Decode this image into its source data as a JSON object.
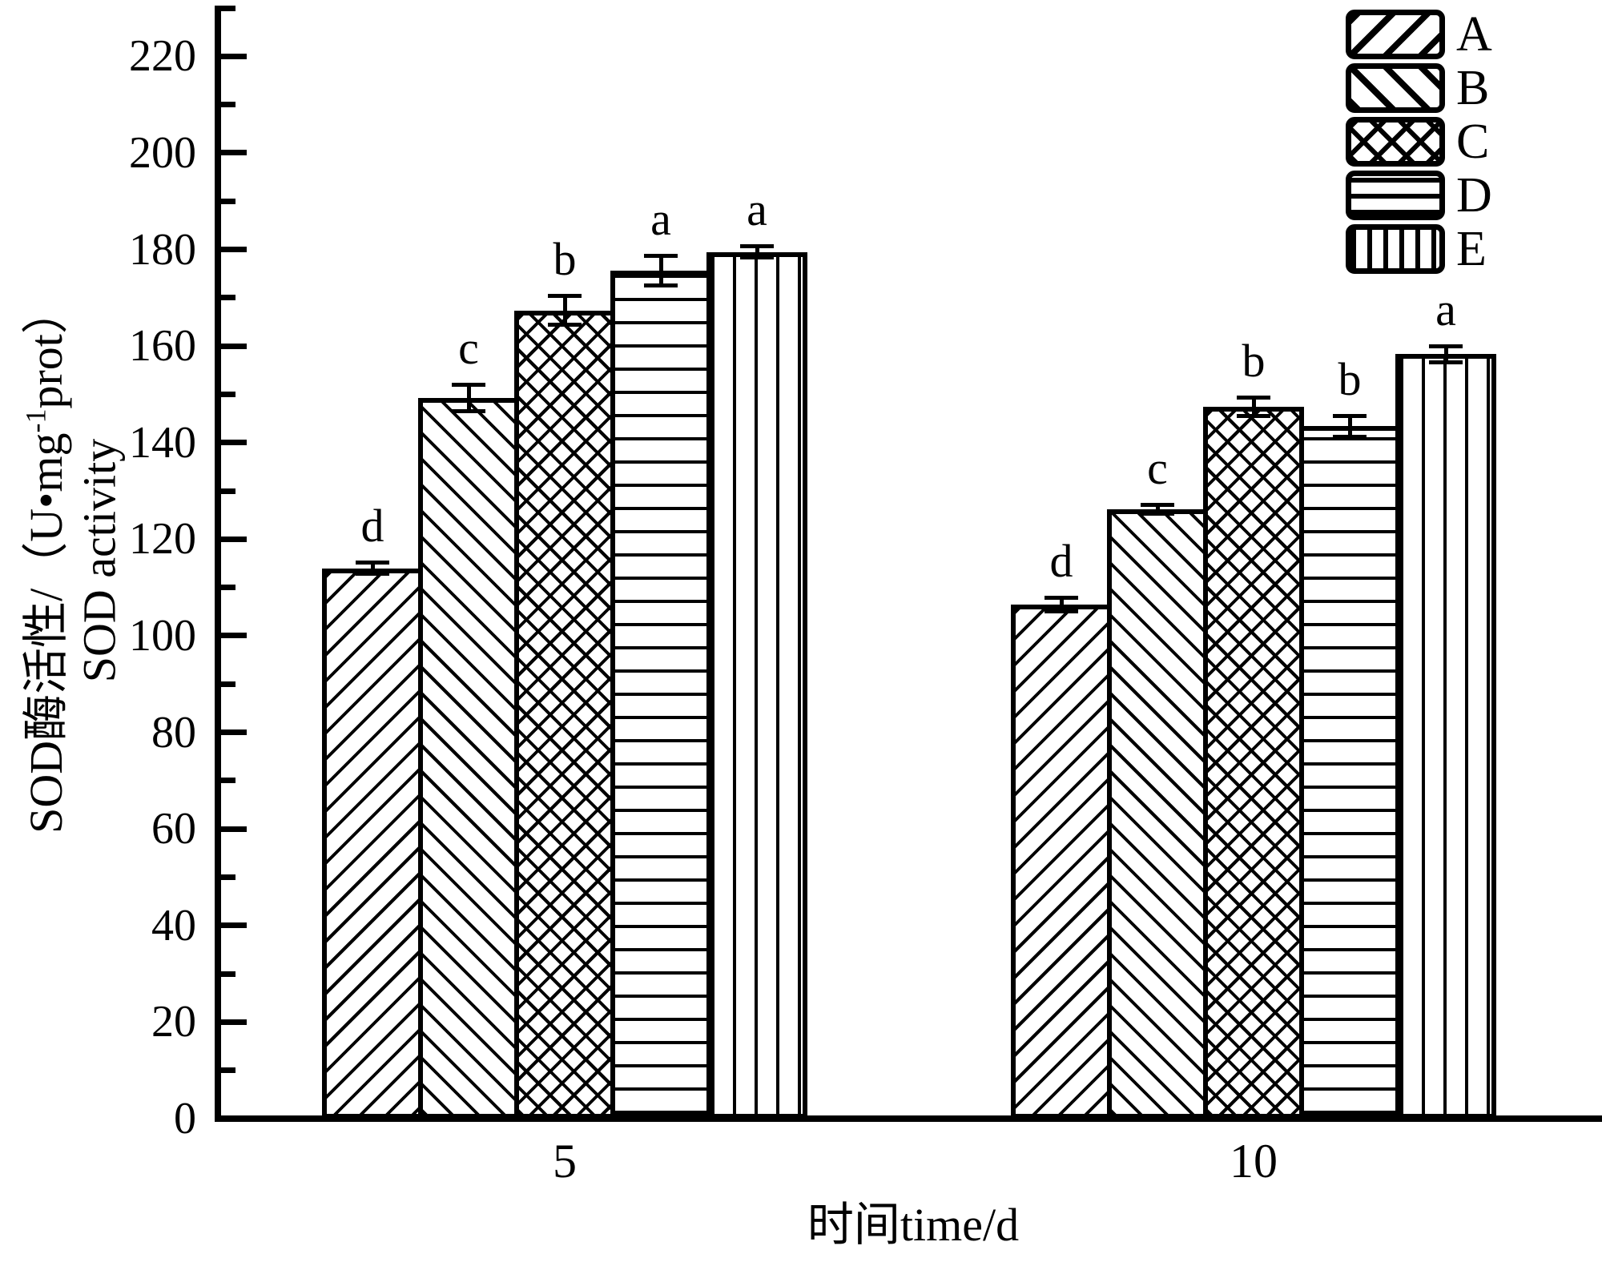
{
  "axes": {
    "y_label": {
      "pre": "SOD酶活性/（U•mg",
      "sup": "-1",
      "post": "prot）",
      "line2": "SOD activity"
    },
    "y_tick_labels": [
      0,
      20,
      40,
      60,
      80,
      100,
      120,
      140,
      160,
      180,
      200,
      220
    ]
  },
  "chart_data": {
    "type": "bar",
    "title": "",
    "xlabel": "时间time/d",
    "ylabel": "SOD酶活性/（U•mg⁻¹prot） SOD activity",
    "categories": [
      "5",
      "10"
    ],
    "series": [
      {
        "name": "A",
        "pattern": "diag-up",
        "values": [
          114.0,
          106.5
        ],
        "errors": [
          1.2,
          1.5
        ],
        "letters": [
          "d",
          "d"
        ]
      },
      {
        "name": "B",
        "pattern": "diag-down",
        "values": [
          149.2,
          126.2
        ],
        "errors": [
          2.8,
          1.0
        ],
        "letters": [
          "c",
          "c"
        ]
      },
      {
        "name": "C",
        "pattern": "cross",
        "values": [
          167.4,
          147.4
        ],
        "errors": [
          3.0,
          2.0
        ],
        "letters": [
          "b",
          "b"
        ]
      },
      {
        "name": "D",
        "pattern": "horiz",
        "values": [
          175.6,
          143.4
        ],
        "errors": [
          3.2,
          2.2
        ],
        "letters": [
          "a",
          "b"
        ]
      },
      {
        "name": "E",
        "pattern": "vert",
        "values": [
          179.5,
          158.3
        ],
        "errors": [
          1.3,
          1.8
        ],
        "letters": [
          "a",
          "a"
        ]
      }
    ],
    "ylim": [
      0,
      230
    ],
    "y_major_step": 20,
    "y_minor_step": 10,
    "grid": false,
    "legend_position": "top-right",
    "error_bars": true,
    "bar_colors": {
      "fill": "#ffffff",
      "stroke": "#000000"
    }
  },
  "legend": {
    "items": [
      "A",
      "B",
      "C",
      "D",
      "E"
    ]
  }
}
